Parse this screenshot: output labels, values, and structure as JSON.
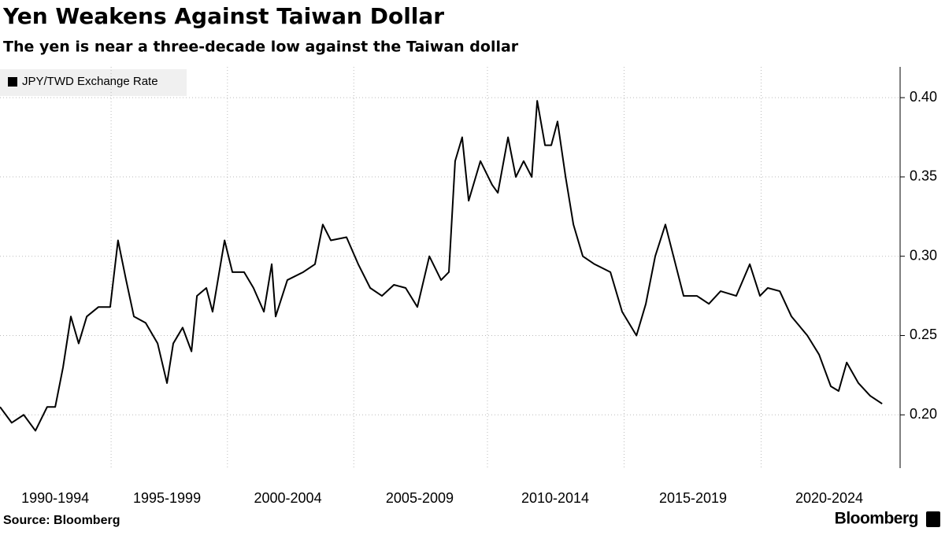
{
  "chart_data": {
    "type": "line",
    "title": "Yen Weakens Against Taiwan Dollar",
    "subtitle": "The yen is near a three-decade low against the Taiwan dollar",
    "source": "Source: Bloomberg",
    "brand": "Bloomberg",
    "legend_position": "top-left",
    "grid": true,
    "x": [
      1990.75,
      1991.2,
      1991.66,
      1992.11,
      1992.56,
      1992.87,
      1993.17,
      1993.47,
      1993.77,
      1994.08,
      1994.53,
      1994.98,
      1995.28,
      1995.59,
      1995.89,
      1996.34,
      1996.8,
      1997.16,
      1997.4,
      1997.76,
      1998.1,
      1998.31,
      1998.67,
      1998.91,
      1999.37,
      1999.67,
      2000.12,
      2000.48,
      2000.88,
      2001.18,
      2001.33,
      2001.78,
      2002.39,
      2002.84,
      2003.14,
      2003.45,
      2004.05,
      2004.5,
      2004.96,
      2005.41,
      2005.87,
      2006.32,
      2006.77,
      2007.23,
      2007.68,
      2007.98,
      2008.22,
      2008.49,
      2008.74,
      2009.19,
      2009.64,
      2009.86,
      2010.25,
      2010.55,
      2010.85,
      2011.16,
      2011.37,
      2011.67,
      2011.91,
      2012.15,
      2012.46,
      2012.76,
      2013.12,
      2013.57,
      2014.18,
      2014.63,
      2015.18,
      2015.54,
      2015.9,
      2016.29,
      2016.6,
      2016.99,
      2017.5,
      2017.96,
      2018.41,
      2019.01,
      2019.53,
      2019.92,
      2020.22,
      2020.68,
      2021.13,
      2021.74,
      2022.19,
      2022.64,
      2022.94,
      2023.25,
      2023.7,
      2024.15,
      2024.61
    ],
    "series": [
      {
        "name": "JPY/TWD Exchange Rate",
        "color": "#000000",
        "values": [
          0.205,
          0.195,
          0.2,
          0.19,
          0.205,
          0.205,
          0.23,
          0.262,
          0.245,
          0.262,
          0.268,
          0.268,
          0.31,
          0.285,
          0.262,
          0.258,
          0.245,
          0.22,
          0.245,
          0.255,
          0.24,
          0.275,
          0.28,
          0.265,
          0.31,
          0.29,
          0.29,
          0.28,
          0.265,
          0.295,
          0.262,
          0.285,
          0.29,
          0.295,
          0.32,
          0.31,
          0.312,
          0.295,
          0.28,
          0.275,
          0.282,
          0.28,
          0.268,
          0.3,
          0.285,
          0.29,
          0.36,
          0.375,
          0.335,
          0.36,
          0.345,
          0.34,
          0.375,
          0.35,
          0.36,
          0.35,
          0.398,
          0.37,
          0.37,
          0.385,
          0.35,
          0.32,
          0.3,
          0.295,
          0.29,
          0.265,
          0.25,
          0.27,
          0.3,
          0.32,
          0.3,
          0.275,
          0.275,
          0.27,
          0.278,
          0.275,
          0.295,
          0.275,
          0.28,
          0.278,
          0.262,
          0.25,
          0.238,
          0.218,
          0.215,
          0.233,
          0.22,
          0.212,
          0.207
        ]
      }
    ],
    "xlim": [
      1990.75,
      2025.3
    ],
    "xticks": [
      {
        "value": 1992.87,
        "label": "1990-1994"
      },
      {
        "value": 1997.16,
        "label": "1995-1999"
      },
      {
        "value": 2001.8,
        "label": "2000-2004"
      },
      {
        "value": 2006.86,
        "label": "2005-2009"
      },
      {
        "value": 2012.06,
        "label": "2010-2014"
      },
      {
        "value": 2017.35,
        "label": "2015-2019"
      },
      {
        "value": 2022.58,
        "label": "2020-2024"
      }
    ],
    "ylim": [
      0.1664,
      0.4194
    ],
    "yticks": [
      {
        "value": 0.2,
        "label": "0.20"
      },
      {
        "value": 0.25,
        "label": "0.25"
      },
      {
        "value": 0.3,
        "label": "0.30"
      },
      {
        "value": 0.35,
        "label": "0.35"
      },
      {
        "value": 0.4,
        "label": "0.40"
      }
    ]
  }
}
